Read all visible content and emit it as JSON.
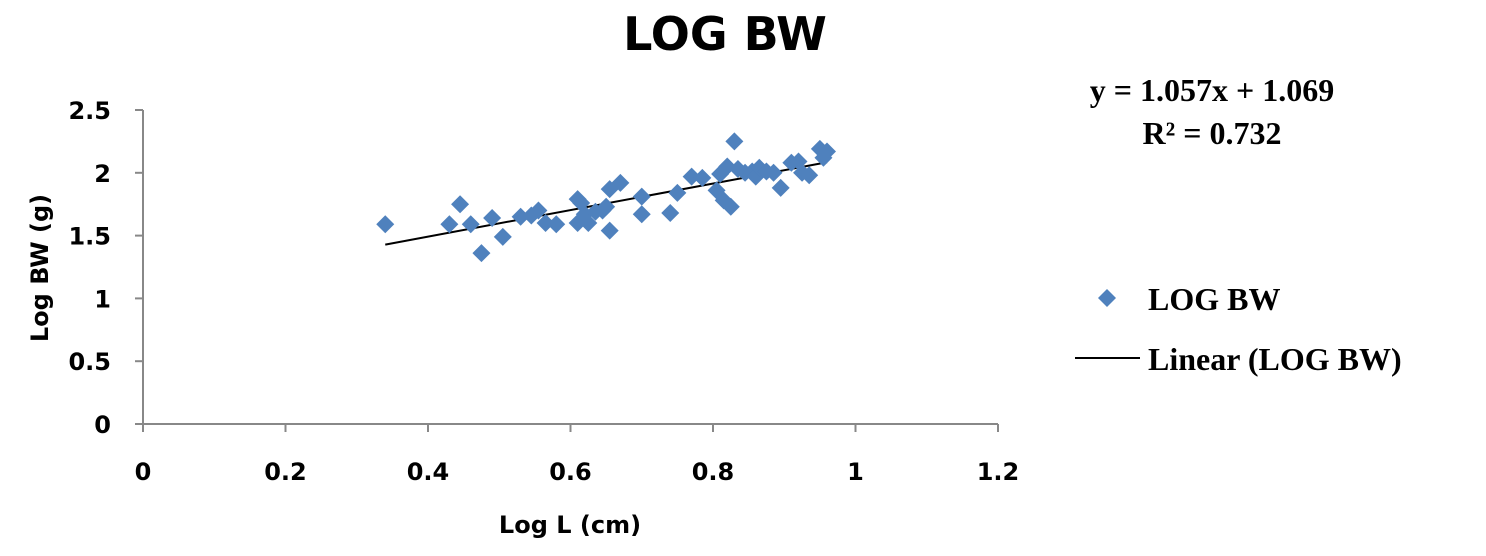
{
  "chart_data": {
    "type": "scatter",
    "title": "LOG BW",
    "xlabel": "Log L (cm)",
    "ylabel": "Log BW (g)",
    "xlim": [
      0,
      1.2
    ],
    "ylim": [
      0,
      2.5
    ],
    "x_ticks": [
      "0",
      "0.2",
      "0.4",
      "0.6",
      "0.8",
      "1",
      "1.2"
    ],
    "y_ticks": [
      "0",
      "0.5",
      "1",
      "1.5",
      "2",
      "2.5"
    ],
    "x_tick_values": [
      0,
      0.2,
      0.4,
      0.6,
      0.8,
      1,
      1.2
    ],
    "y_tick_values": [
      0,
      0.5,
      1,
      1.5,
      2,
      2.5
    ],
    "grid": false,
    "legend_position": "right",
    "series": [
      {
        "name": "LOG BW",
        "color": "#4f81bd",
        "marker": "diamond",
        "points": [
          [
            0.34,
            1.59
          ],
          [
            0.43,
            1.59
          ],
          [
            0.445,
            1.75
          ],
          [
            0.46,
            1.59
          ],
          [
            0.475,
            1.36
          ],
          [
            0.49,
            1.64
          ],
          [
            0.505,
            1.49
          ],
          [
            0.53,
            1.65
          ],
          [
            0.545,
            1.66
          ],
          [
            0.555,
            1.7
          ],
          [
            0.565,
            1.6
          ],
          [
            0.58,
            1.59
          ],
          [
            0.61,
            1.79
          ],
          [
            0.61,
            1.6
          ],
          [
            0.615,
            1.76
          ],
          [
            0.62,
            1.67
          ],
          [
            0.625,
            1.6
          ],
          [
            0.635,
            1.69
          ],
          [
            0.645,
            1.7
          ],
          [
            0.65,
            1.73
          ],
          [
            0.655,
            1.87
          ],
          [
            0.655,
            1.54
          ],
          [
            0.67,
            1.92
          ],
          [
            0.7,
            1.81
          ],
          [
            0.7,
            1.67
          ],
          [
            0.74,
            1.68
          ],
          [
            0.75,
            1.84
          ],
          [
            0.77,
            1.97
          ],
          [
            0.785,
            1.96
          ],
          [
            0.805,
            1.86
          ],
          [
            0.81,
            1.99
          ],
          [
            0.815,
            1.78
          ],
          [
            0.82,
            2.05
          ],
          [
            0.825,
            1.73
          ],
          [
            0.83,
            2.25
          ],
          [
            0.835,
            2.03
          ],
          [
            0.845,
            2.0
          ],
          [
            0.855,
            2.01
          ],
          [
            0.86,
            1.97
          ],
          [
            0.865,
            2.04
          ],
          [
            0.875,
            2.01
          ],
          [
            0.885,
            2.0
          ],
          [
            0.895,
            1.88
          ],
          [
            0.91,
            2.08
          ],
          [
            0.92,
            2.09
          ],
          [
            0.925,
            2.0
          ],
          [
            0.935,
            1.98
          ],
          [
            0.95,
            2.19
          ],
          [
            0.955,
            2.12
          ],
          [
            0.96,
            2.17
          ]
        ]
      },
      {
        "name": "Linear (LOG BW)",
        "type": "line",
        "color": "#000000",
        "slope": 1.057,
        "intercept": 1.069,
        "x_range": [
          0.34,
          0.96
        ]
      }
    ],
    "annotations": {
      "equation": "y = 1.057x + 1.069",
      "r_squared": "R² = 0.732"
    }
  }
}
